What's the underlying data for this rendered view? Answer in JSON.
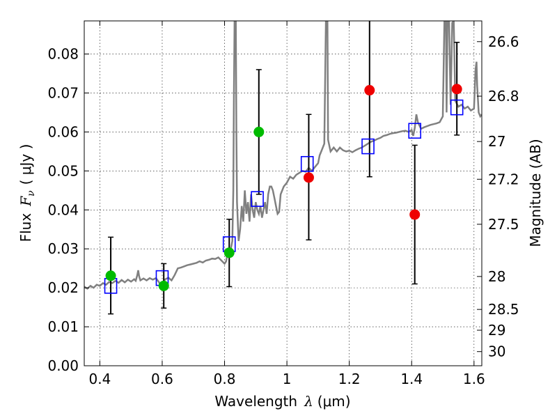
{
  "chart_data": {
    "type": "scatter",
    "xlabel_prefix": "Wavelength",
    "xlabel_symbol": "λ",
    "xlabel_unit": "(μm)",
    "ylabel_prefix": "Flux",
    "ylabel_symbol": "F",
    "ylabel_subscript": "ν",
    "ylabel_unit": "( μJy )",
    "y2label": "Magnitude (AB)",
    "xlim": [
      0.35,
      1.625
    ],
    "ylim": [
      0.0,
      0.0885
    ],
    "x_ticks": [
      {
        "value": 0.4,
        "label": "0.4"
      },
      {
        "value": 0.6,
        "label": "0.6"
      },
      {
        "value": 0.8,
        "label": "0.8"
      },
      {
        "value": 1.0,
        "label": "1"
      },
      {
        "value": 1.2,
        "label": "1.2"
      },
      {
        "value": 1.4,
        "label": "1.4"
      },
      {
        "value": 1.6,
        "label": "1.6"
      }
    ],
    "y_ticks": [
      {
        "value": 0.0,
        "label": "0.00"
      },
      {
        "value": 0.01,
        "label": "0.01"
      },
      {
        "value": 0.02,
        "label": "0.02"
      },
      {
        "value": 0.03,
        "label": "0.03"
      },
      {
        "value": 0.04,
        "label": "0.04"
      },
      {
        "value": 0.05,
        "label": "0.05"
      },
      {
        "value": 0.06,
        "label": "0.06"
      },
      {
        "value": 0.07,
        "label": "0.07"
      },
      {
        "value": 0.08,
        "label": "0.08"
      }
    ],
    "y2_ticks": [
      {
        "mag": 26.6,
        "label": "26.6"
      },
      {
        "mag": 26.8,
        "label": "26.8"
      },
      {
        "mag": 27.0,
        "label": "27"
      },
      {
        "mag": 27.2,
        "label": "27.2"
      },
      {
        "mag": 27.5,
        "label": "27.5"
      },
      {
        "mag": 28.0,
        "label": "28"
      },
      {
        "mag": 28.5,
        "label": "28.5"
      },
      {
        "mag": 29.0,
        "label": "29"
      },
      {
        "mag": 30.0,
        "label": "30"
      }
    ],
    "grid": true,
    "colors": {
      "spectrum": "#808080",
      "model_box": "#0000ff",
      "detection": "#00bb00",
      "upper": "#ee0000",
      "errorbar": "#000000"
    },
    "spectrum": [
      [
        0.35,
        0.0203
      ],
      [
        0.36,
        0.0198
      ],
      [
        0.37,
        0.0205
      ],
      [
        0.38,
        0.02
      ],
      [
        0.39,
        0.0208
      ],
      [
        0.4,
        0.0205
      ],
      [
        0.41,
        0.0212
      ],
      [
        0.42,
        0.0208
      ],
      [
        0.43,
        0.0215
      ],
      [
        0.44,
        0.0212
      ],
      [
        0.45,
        0.0218
      ],
      [
        0.46,
        0.0213
      ],
      [
        0.47,
        0.022
      ],
      [
        0.48,
        0.0214
      ],
      [
        0.49,
        0.0221
      ],
      [
        0.5,
        0.0216
      ],
      [
        0.51,
        0.0222
      ],
      [
        0.515,
        0.0218
      ],
      [
        0.52,
        0.0232
      ],
      [
        0.523,
        0.0245
      ],
      [
        0.526,
        0.023
      ],
      [
        0.53,
        0.0219
      ],
      [
        0.54,
        0.0224
      ],
      [
        0.55,
        0.0219
      ],
      [
        0.56,
        0.0225
      ],
      [
        0.57,
        0.0221
      ],
      [
        0.58,
        0.0225
      ],
      [
        0.59,
        0.0214
      ],
      [
        0.595,
        0.0204
      ],
      [
        0.6,
        0.021
      ],
      [
        0.61,
        0.0222
      ],
      [
        0.62,
        0.0226
      ],
      [
        0.63,
        0.0219
      ],
      [
        0.64,
        0.0233
      ],
      [
        0.65,
        0.025
      ],
      [
        0.66,
        0.0252
      ],
      [
        0.67,
        0.0255
      ],
      [
        0.68,
        0.0258
      ],
      [
        0.69,
        0.026
      ],
      [
        0.7,
        0.0262
      ],
      [
        0.71,
        0.0264
      ],
      [
        0.72,
        0.0268
      ],
      [
        0.73,
        0.0265
      ],
      [
        0.74,
        0.027
      ],
      [
        0.75,
        0.0272
      ],
      [
        0.76,
        0.0275
      ],
      [
        0.77,
        0.0274
      ],
      [
        0.78,
        0.0278
      ],
      [
        0.79,
        0.027
      ],
      [
        0.8,
        0.0262
      ],
      [
        0.805,
        0.0268
      ],
      [
        0.81,
        0.029
      ],
      [
        0.815,
        0.0287
      ],
      [
        0.82,
        0.03
      ],
      [
        0.825,
        0.032
      ],
      [
        0.828,
        0.045
      ],
      [
        0.83,
        0.07
      ],
      [
        0.832,
        0.0885
      ],
      [
        0.836,
        0.0885
      ],
      [
        0.838,
        0.06
      ],
      [
        0.84,
        0.042
      ],
      [
        0.845,
        0.032
      ],
      [
        0.85,
        0.035
      ],
      [
        0.855,
        0.041
      ],
      [
        0.86,
        0.037
      ],
      [
        0.865,
        0.045
      ],
      [
        0.87,
        0.039
      ],
      [
        0.875,
        0.042
      ],
      [
        0.88,
        0.037
      ],
      [
        0.885,
        0.044
      ],
      [
        0.89,
        0.04
      ],
      [
        0.895,
        0.038
      ],
      [
        0.9,
        0.042
      ],
      [
        0.905,
        0.04
      ],
      [
        0.91,
        0.039
      ],
      [
        0.915,
        0.041
      ],
      [
        0.92,
        0.038
      ],
      [
        0.925,
        0.04
      ],
      [
        0.93,
        0.042
      ],
      [
        0.935,
        0.039
      ],
      [
        0.94,
        0.044
      ],
      [
        0.945,
        0.046
      ],
      [
        0.95,
        0.046
      ],
      [
        0.955,
        0.045
      ],
      [
        0.96,
        0.043
      ],
      [
        0.965,
        0.041
      ],
      [
        0.97,
        0.039
      ],
      [
        0.975,
        0.0395
      ],
      [
        0.98,
        0.044
      ],
      [
        0.99,
        0.046
      ],
      [
        1.0,
        0.047
      ],
      [
        1.01,
        0.0485
      ],
      [
        1.02,
        0.048
      ],
      [
        1.03,
        0.049
      ],
      [
        1.04,
        0.0495
      ],
      [
        1.05,
        0.05
      ],
      [
        1.06,
        0.0498
      ],
      [
        1.07,
        0.0508
      ],
      [
        1.08,
        0.05
      ],
      [
        1.09,
        0.051
      ],
      [
        1.1,
        0.052
      ],
      [
        1.105,
        0.054
      ],
      [
        1.11,
        0.055
      ],
      [
        1.115,
        0.056
      ],
      [
        1.12,
        0.057
      ],
      [
        1.125,
        0.0885
      ],
      [
        1.13,
        0.0885
      ],
      [
        1.132,
        0.058
      ],
      [
        1.14,
        0.055
      ],
      [
        1.15,
        0.056
      ],
      [
        1.16,
        0.055
      ],
      [
        1.17,
        0.056
      ],
      [
        1.18,
        0.0553
      ],
      [
        1.19,
        0.055
      ],
      [
        1.2,
        0.0552
      ],
      [
        1.21,
        0.0548
      ],
      [
        1.22,
        0.0553
      ],
      [
        1.23,
        0.0557
      ],
      [
        1.24,
        0.056
      ],
      [
        1.25,
        0.0565
      ],
      [
        1.26,
        0.057
      ],
      [
        1.27,
        0.0575
      ],
      [
        1.28,
        0.0578
      ],
      [
        1.29,
        0.0582
      ],
      [
        1.3,
        0.0585
      ],
      [
        1.31,
        0.059
      ],
      [
        1.32,
        0.0592
      ],
      [
        1.33,
        0.0595
      ],
      [
        1.34,
        0.0597
      ],
      [
        1.35,
        0.0598
      ],
      [
        1.36,
        0.06
      ],
      [
        1.37,
        0.0602
      ],
      [
        1.38,
        0.0603
      ],
      [
        1.39,
        0.06
      ],
      [
        1.4,
        0.0605
      ],
      [
        1.405,
        0.059
      ],
      [
        1.41,
        0.061
      ],
      [
        1.415,
        0.0645
      ],
      [
        1.42,
        0.0625
      ],
      [
        1.43,
        0.0608
      ],
      [
        1.44,
        0.0612
      ],
      [
        1.45,
        0.0615
      ],
      [
        1.46,
        0.0618
      ],
      [
        1.47,
        0.062
      ],
      [
        1.48,
        0.0622
      ],
      [
        1.49,
        0.0625
      ],
      [
        1.5,
        0.064
      ],
      [
        1.505,
        0.0885
      ],
      [
        1.51,
        0.0885
      ],
      [
        1.512,
        0.065
      ],
      [
        1.515,
        0.0885
      ],
      [
        1.52,
        0.0885
      ],
      [
        1.525,
        0.067
      ],
      [
        1.53,
        0.088
      ],
      [
        1.535,
        0.0885
      ],
      [
        1.54,
        0.068
      ],
      [
        1.55,
        0.0665
      ],
      [
        1.56,
        0.067
      ],
      [
        1.57,
        0.066
      ],
      [
        1.58,
        0.0665
      ],
      [
        1.59,
        0.0655
      ],
      [
        1.6,
        0.066
      ],
      [
        1.605,
        0.076
      ],
      [
        1.608,
        0.078
      ],
      [
        1.61,
        0.072
      ],
      [
        1.615,
        0.065
      ],
      [
        1.62,
        0.064
      ],
      [
        1.625,
        0.0645
      ]
    ],
    "model_boxes": [
      {
        "x": 0.435,
        "y": 0.0205
      },
      {
        "x": 0.6,
        "y": 0.0225
      },
      {
        "x": 0.815,
        "y": 0.0312
      },
      {
        "x": 0.905,
        "y": 0.0428
      },
      {
        "x": 1.065,
        "y": 0.0518
      },
      {
        "x": 1.26,
        "y": 0.0563
      },
      {
        "x": 1.41,
        "y": 0.0603
      },
      {
        "x": 1.545,
        "y": 0.0663
      }
    ],
    "detections": [
      {
        "x": 0.435,
        "y": 0.0231,
        "err_lo": 0.0133,
        "err_hi": 0.033
      },
      {
        "x": 0.605,
        "y": 0.0205,
        "err_lo": 0.0148,
        "err_hi": 0.0262
      },
      {
        "x": 0.815,
        "y": 0.029,
        "err_lo": 0.0203,
        "err_hi": 0.0376
      },
      {
        "x": 0.91,
        "y": 0.06,
        "err_lo": 0.044,
        "err_hi": 0.076
      }
    ],
    "upper_points": [
      {
        "x": 1.07,
        "y": 0.0483,
        "err_lo": 0.0323,
        "err_hi": 0.0645
      },
      {
        "x": 1.265,
        "y": 0.0707,
        "err_lo": 0.0485,
        "err_hi": 0.09
      },
      {
        "x": 1.41,
        "y": 0.0388,
        "err_lo": 0.021,
        "err_hi": 0.0566
      },
      {
        "x": 1.545,
        "y": 0.071,
        "err_lo": 0.0592,
        "err_hi": 0.083
      }
    ]
  }
}
